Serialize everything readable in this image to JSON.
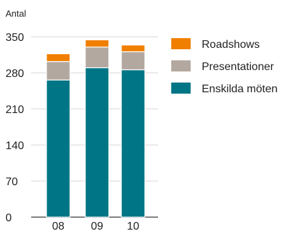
{
  "chart_data": {
    "type": "bar",
    "stacked": true,
    "title": "",
    "ylabel": "Antal",
    "xlabel": "",
    "categories": [
      "08",
      "09",
      "10"
    ],
    "yticks": [
      0,
      70,
      140,
      210,
      280,
      350
    ],
    "ylim": [
      0,
      350
    ],
    "grid": true,
    "legend_position": "right",
    "series": [
      {
        "name": "Enskilda möten",
        "color": "#007586",
        "values": [
          266,
          290,
          286
        ]
      },
      {
        "name": "Presentationer",
        "color": "#b3a89f",
        "values": [
          36,
          40,
          35
        ]
      },
      {
        "name": "Roadshows",
        "color": "#f07f00",
        "values": [
          15,
          14,
          13
        ]
      }
    ]
  }
}
